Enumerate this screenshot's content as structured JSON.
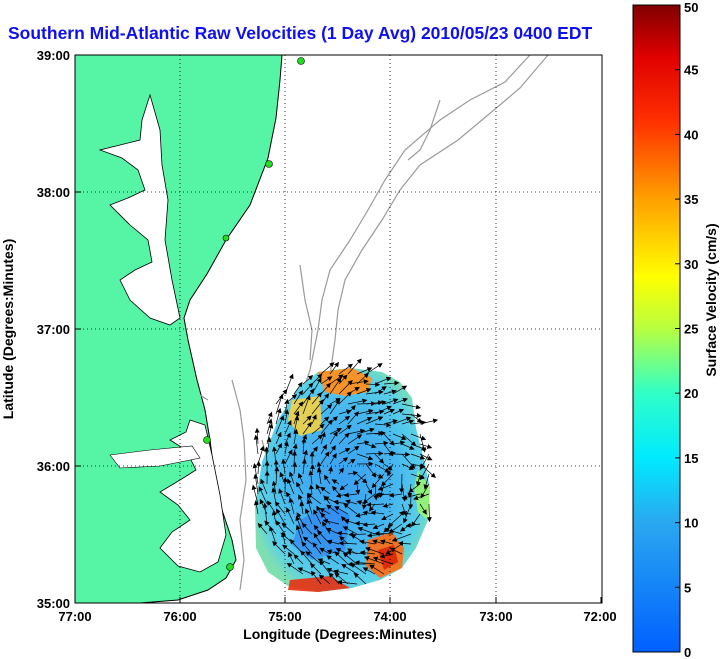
{
  "title": "Southern Mid-Atlantic Raw Velocities (1 Day Avg) 2010/05/23 0400 EDT",
  "map": {
    "xlabel": "Longitude (Degrees:Minutes)",
    "ylabel": "Latitude (Degrees:Minutes)",
    "lon_ticks": [
      "77:00",
      "76:00",
      "75:00",
      "74:00",
      "73:00",
      "72:00"
    ],
    "lat_ticks": [
      "39:00",
      "38:00",
      "37:00",
      "36:00",
      "35:00"
    ],
    "lon_range": [
      -77,
      -72
    ],
    "lat_range": [
      35,
      39
    ],
    "grid": "dotted",
    "land_color": "#55f5a5",
    "coast_color": "#000000",
    "bathymetry_color": "#9a9a9a",
    "station_color": "#22dd22"
  },
  "colorbar": {
    "label": "Surface Velocity (cm/s)",
    "ticks": [
      "0",
      "5",
      "10",
      "15",
      "20",
      "25",
      "30",
      "35",
      "40",
      "45",
      "50"
    ],
    "range": [
      0,
      50
    ],
    "colormap": "jet"
  }
}
